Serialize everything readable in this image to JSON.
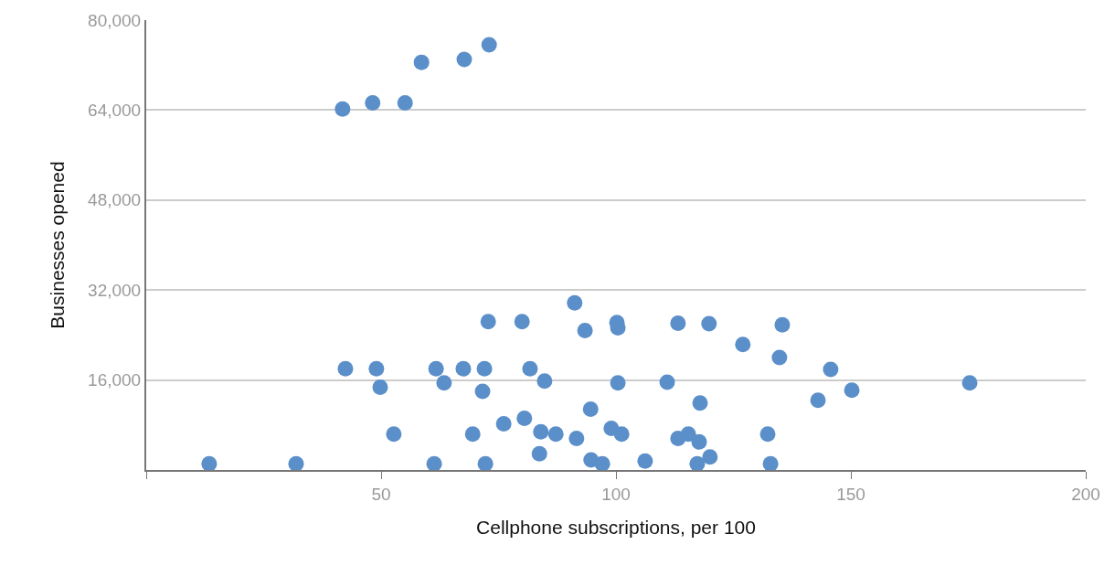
{
  "chart_data": {
    "type": "scatter",
    "xlabel": "Cellphone subscriptions, per 100",
    "ylabel": "Businesses opened",
    "x": [
      13.4,
      31.9,
      41.8,
      48.2,
      55.1,
      58.6,
      67.7,
      73.0,
      42.4,
      49.0,
      49.8,
      52.7,
      61.7,
      63.4,
      61.3,
      67.5,
      69.5,
      71.6,
      72.0,
      72.2,
      72.8,
      76.1,
      80.0,
      80.5,
      81.7,
      83.7,
      84.0,
      84.8,
      87.2,
      91.2,
      91.6,
      93.4,
      94.6,
      94.7,
      97.1,
      99.0,
      100.2,
      100.4,
      100.4,
      101.2,
      106.2,
      110.9,
      113.2,
      113.2,
      115.4,
      117.3,
      117.7,
      117.9,
      119.8,
      120.0,
      127.0,
      132.3,
      132.9,
      134.8,
      135.4,
      143.0,
      145.7,
      150.2,
      175.3
    ],
    "values": [
      1100,
      1100,
      64200,
      65300,
      65300,
      72500,
      73000,
      75600,
      18000,
      18000,
      14700,
      6400,
      18000,
      15500,
      1100,
      18000,
      6400,
      14000,
      18000,
      1100,
      26400,
      8200,
      26400,
      9200,
      18000,
      2900,
      6800,
      15800,
      6400,
      29700,
      5600,
      24800,
      10800,
      1800,
      1100,
      7400,
      26200,
      25300,
      15500,
      6400,
      1600,
      15600,
      26100,
      5600,
      6400,
      1100,
      5000,
      11900,
      26000,
      2300,
      22300,
      6400,
      1100,
      20000,
      25800,
      12400,
      17900,
      14200,
      15500
    ],
    "color": "#5b8fc9",
    "marker": "circle",
    "xlim": [
      0,
      200
    ],
    "xticks": [
      {
        "value": 0,
        "label": null
      },
      50,
      100,
      150,
      200
    ],
    "ylim": [
      0,
      80000
    ],
    "yticks": [
      {
        "value": 0,
        "label": null
      },
      {
        "value": 16000,
        "label": "16,000"
      },
      {
        "value": 32000,
        "label": "32,000"
      },
      {
        "value": 48000,
        "label": "48,000"
      },
      {
        "value": 64000,
        "label": "64,000"
      },
      {
        "value": 80000,
        "label": "80,000"
      }
    ],
    "grid": "y"
  }
}
